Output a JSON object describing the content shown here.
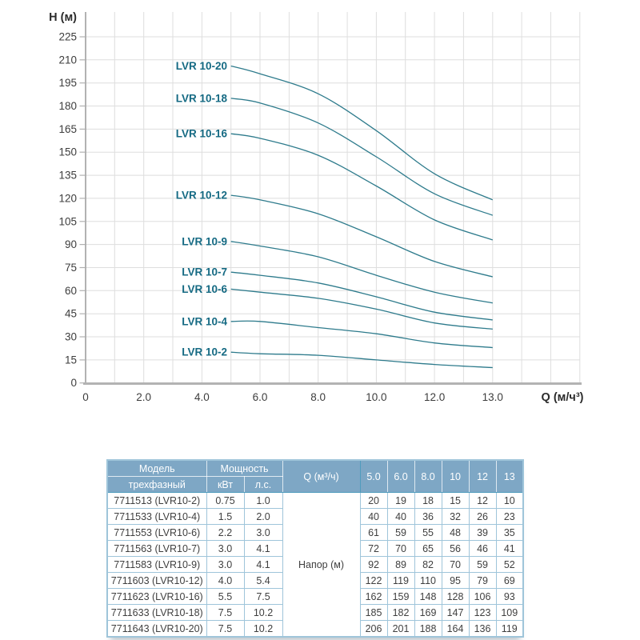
{
  "chart": {
    "y_axis_title": "H (м)",
    "x_axis_title": "Q (м/ч³)",
    "y_tick_labels": [
      "0",
      "15",
      "30",
      "45",
      "60",
      "75",
      "90",
      "105",
      "120",
      "135",
      "150",
      "165",
      "180",
      "195",
      "210",
      "225"
    ],
    "x_tick_labels": [
      "0",
      "2.0",
      "4.0",
      "6.0",
      "8.0",
      "10.0",
      "12.0",
      "13.0"
    ],
    "colors": {
      "curve": "#2e7b8c",
      "curve_label": "#156a83",
      "grid": "#dedede",
      "axis_left": "#929292",
      "axis_bottom": "#b3b3b3",
      "tick": "#b0b0b0",
      "tick_text": "#3d3d3d",
      "title_text": "#2b2b2b"
    }
  },
  "chart_data": {
    "type": "line",
    "title": "",
    "xlabel": "Q (м/ч³)",
    "ylabel": "H (м)",
    "x": [
      5.0,
      6.0,
      8.0,
      10,
      12,
      13
    ],
    "series": [
      {
        "name": "LVR 10-2",
        "values": [
          20,
          19,
          18,
          15,
          12,
          10
        ]
      },
      {
        "name": "LVR 10-4",
        "values": [
          40,
          40,
          36,
          32,
          26,
          23
        ]
      },
      {
        "name": "LVR 10-6",
        "values": [
          61,
          59,
          55,
          48,
          39,
          35
        ]
      },
      {
        "name": "LVR 10-7",
        "values": [
          72,
          70,
          65,
          56,
          46,
          41
        ]
      },
      {
        "name": "LVR 10-9",
        "values": [
          92,
          89,
          82,
          70,
          59,
          52
        ]
      },
      {
        "name": "LVR 10-12",
        "values": [
          122,
          119,
          110,
          95,
          79,
          69
        ]
      },
      {
        "name": "LVR 10-16",
        "values": [
          162,
          159,
          148,
          128,
          106,
          93
        ]
      },
      {
        "name": "LVR 10-18",
        "values": [
          185,
          182,
          169,
          147,
          123,
          109
        ]
      },
      {
        "name": "LVR 10-20",
        "values": [
          206,
          201,
          188,
          164,
          136,
          119
        ]
      }
    ],
    "ylim": [
      0,
      225
    ],
    "y_tick_step": 15,
    "xlim": [
      0,
      17
    ],
    "grid": true,
    "legend": "inline-labels-left-of-curves"
  },
  "table": {
    "colors": {
      "header_bg": "#7ea7c5",
      "header_text": "#ffffff",
      "border": "#9fc5da",
      "header_body_divider": "#4f9cbd",
      "body_text": "#3f3f3f"
    },
    "header": {
      "model": "Модель",
      "model_sub": "трехфазный",
      "power": "Мощность",
      "kw": "кВт",
      "hp": "л.с.",
      "q": "Q (м³/ч)",
      "q_values": [
        "5.0",
        "6.0",
        "8.0",
        "10",
        "12",
        "13"
      ]
    },
    "merged_q_label": "Напор (м)",
    "rows": [
      {
        "model": "7711513 (LVR10-2)",
        "kw": "0.75",
        "hp": "1.0",
        "values": [
          "20",
          "19",
          "18",
          "15",
          "12",
          "10"
        ]
      },
      {
        "model": "7711533 (LVR10-4)",
        "kw": "1.5",
        "hp": "2.0",
        "values": [
          "40",
          "40",
          "36",
          "32",
          "26",
          "23"
        ]
      },
      {
        "model": "7711553 (LVR10-6)",
        "kw": "2.2",
        "hp": "3.0",
        "values": [
          "61",
          "59",
          "55",
          "48",
          "39",
          "35"
        ]
      },
      {
        "model": "7711563 (LVR10-7)",
        "kw": "3.0",
        "hp": "4.1",
        "values": [
          "72",
          "70",
          "65",
          "56",
          "46",
          "41"
        ]
      },
      {
        "model": "7711583 (LVR10-9)",
        "kw": "3.0",
        "hp": "4.1",
        "values": [
          "92",
          "89",
          "82",
          "70",
          "59",
          "52"
        ]
      },
      {
        "model": "7711603 (LVR10-12)",
        "kw": "4.0",
        "hp": "5.4",
        "values": [
          "122",
          "119",
          "110",
          "95",
          "79",
          "69"
        ]
      },
      {
        "model": "7711623 (LVR10-16)",
        "kw": "5.5",
        "hp": "7.5",
        "values": [
          "162",
          "159",
          "148",
          "128",
          "106",
          "93"
        ]
      },
      {
        "model": "7711633 (LVR10-18)",
        "kw": "7.5",
        "hp": "10.2",
        "values": [
          "185",
          "182",
          "169",
          "147",
          "123",
          "109"
        ]
      },
      {
        "model": "7711643 (LVR10-20)",
        "kw": "7.5",
        "hp": "10.2",
        "values": [
          "206",
          "201",
          "188",
          "164",
          "136",
          "119"
        ]
      }
    ]
  }
}
